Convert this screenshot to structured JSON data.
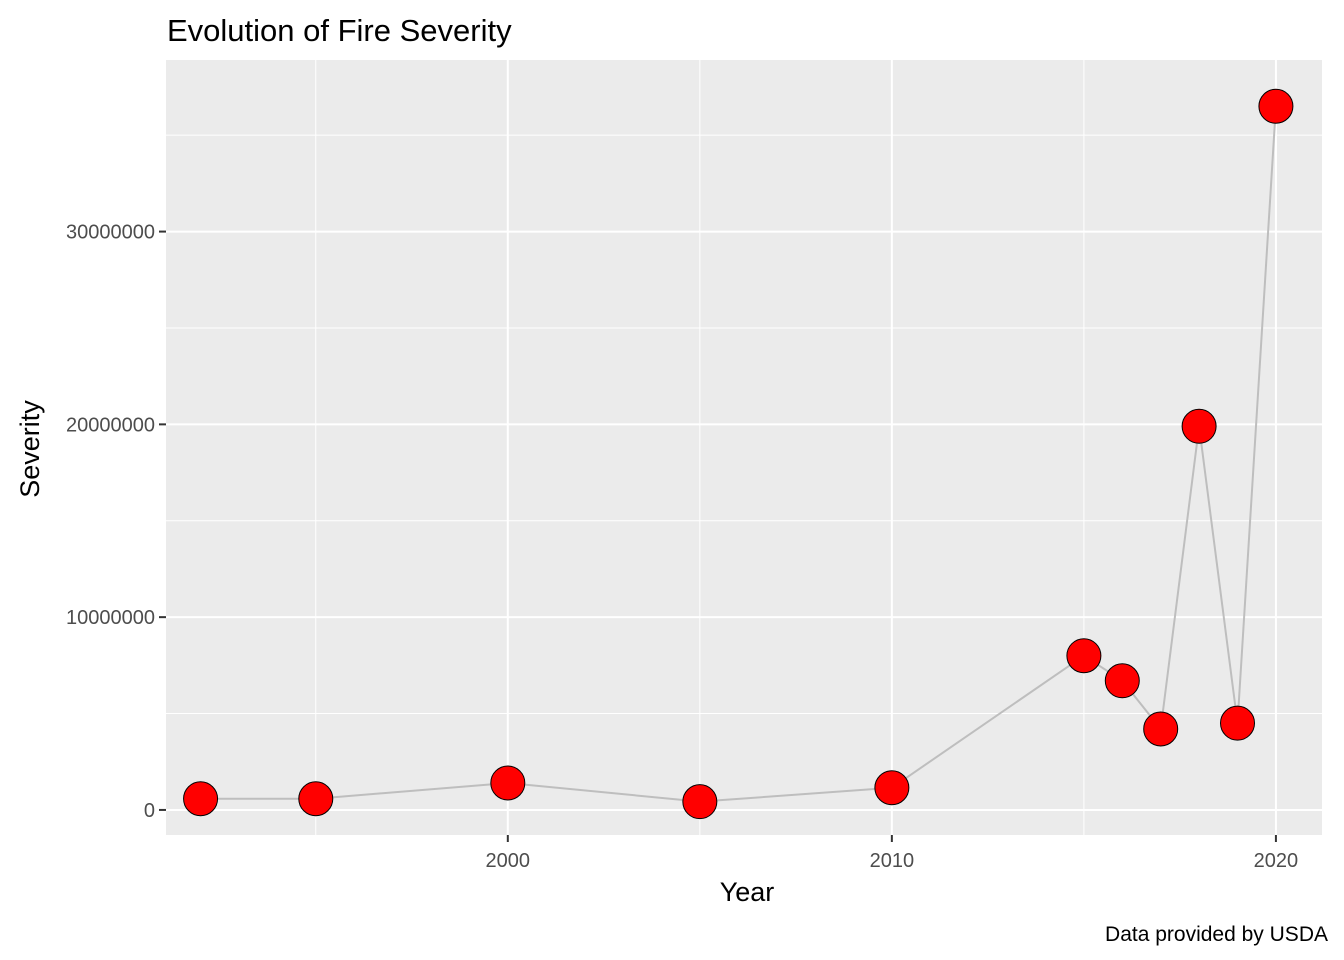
{
  "chart_data": {
    "type": "line",
    "title": "Evolution of Fire Severity",
    "xlabel": "Year",
    "ylabel": "Severity",
    "caption": "Data provided by USDA",
    "xlim": [
      1991.1,
      2021.2
    ],
    "ylim": [
      -1300000,
      38900000
    ],
    "x_ticks": [
      2000,
      2010,
      2020
    ],
    "x_tick_labels": [
      "2000",
      "2010",
      "2020"
    ],
    "x_minor_ticks": [
      1995,
      2005,
      2015
    ],
    "y_ticks": [
      0,
      10000000,
      20000000,
      30000000
    ],
    "y_tick_labels": [
      "0",
      "10000000",
      "20000000",
      "30000000"
    ],
    "y_minor_ticks": [
      5000000,
      15000000,
      25000000,
      35000000
    ],
    "grid": true,
    "legend": "none",
    "series": [
      {
        "x": [
          1992,
          1995,
          2000,
          2005,
          2010,
          2015,
          2016,
          2017,
          2018,
          2019,
          2020
        ],
        "y": [
          580000,
          580000,
          1400000,
          430000,
          1150000,
          8000000,
          6700000,
          4200000,
          19900000,
          4500000,
          36500000
        ]
      }
    ],
    "colors": {
      "panel_background": "#EBEBEB",
      "grid": "#FFFFFF",
      "line": "#BEBEBE",
      "point_fill": "#FF0000",
      "point_stroke": "#000000"
    }
  }
}
